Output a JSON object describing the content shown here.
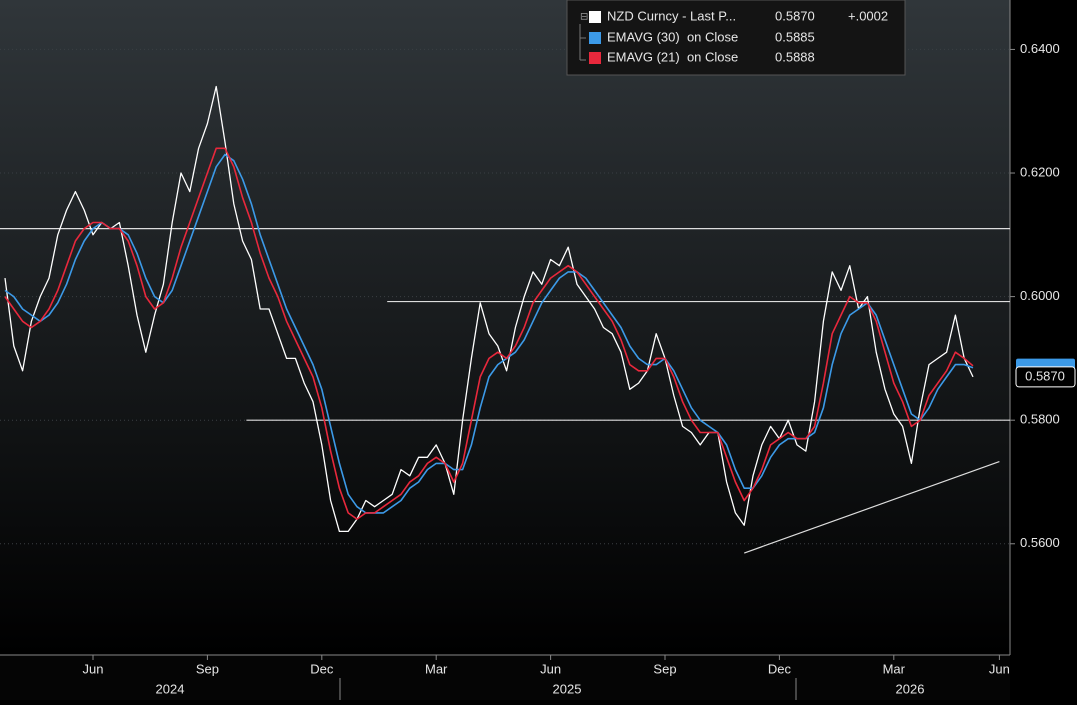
{
  "chart_data": {
    "type": "line",
    "categories": [
      null,
      null,
      null,
      null,
      null,
      null,
      null,
      null,
      null,
      null,
      "Jun",
      null,
      null,
      null,
      null,
      null,
      null,
      null,
      null,
      null,
      null,
      null,
      null,
      "Sep",
      null,
      null,
      null,
      null,
      null,
      null,
      null,
      null,
      null,
      null,
      null,
      null,
      "Dec",
      null,
      null,
      null,
      null,
      null,
      null,
      null,
      null,
      null,
      null,
      null,
      null,
      "Mar",
      null,
      null,
      null,
      null,
      null,
      null,
      null,
      null,
      null,
      null,
      null,
      null,
      "Jun",
      null,
      null,
      null,
      null,
      null,
      null,
      null,
      null,
      null,
      null,
      null,
      null,
      "Sep",
      null,
      null,
      null,
      null,
      null,
      null,
      null,
      null,
      null,
      null,
      null,
      null,
      "Dec",
      null,
      null,
      null,
      null,
      null,
      null,
      null,
      null,
      null,
      null,
      null,
      null,
      "Mar",
      null,
      null,
      null,
      null,
      null,
      null,
      null,
      null,
      null,
      null,
      null,
      "Jun"
    ],
    "x_group_labels": [
      "2024",
      "2025",
      "2026"
    ],
    "series": [
      {
        "name": "NZD Curncy - Last P...",
        "color": "#ffffff",
        "last_label": "0.5870",
        "change_label": "+.0002",
        "values": [
          0.603,
          0.592,
          0.588,
          0.596,
          0.6,
          0.603,
          0.61,
          0.614,
          0.617,
          0.614,
          0.61,
          0.612,
          0.611,
          0.612,
          0.605,
          0.597,
          0.591,
          0.597,
          0.602,
          0.612,
          0.62,
          0.617,
          0.624,
          0.628,
          0.634,
          0.625,
          0.615,
          0.609,
          0.606,
          0.598,
          0.598,
          0.594,
          0.59,
          0.59,
          0.586,
          0.583,
          0.576,
          0.567,
          0.562,
          0.562,
          0.564,
          0.567,
          0.566,
          0.567,
          0.568,
          0.572,
          0.571,
          0.574,
          0.574,
          0.576,
          0.573,
          0.568,
          0.58,
          0.59,
          0.599,
          0.594,
          0.592,
          0.588,
          0.595,
          0.6,
          0.604,
          0.602,
          0.606,
          0.605,
          0.608,
          0.602,
          0.6,
          0.598,
          0.595,
          0.594,
          0.591,
          0.585,
          0.586,
          0.588,
          0.594,
          0.59,
          0.584,
          0.579,
          0.578,
          0.576,
          0.578,
          0.578,
          0.57,
          0.565,
          0.563,
          0.571,
          0.576,
          0.579,
          0.577,
          0.58,
          0.576,
          0.575,
          0.583,
          0.596,
          0.604,
          0.601,
          0.605,
          0.598,
          0.6,
          0.591,
          0.585,
          0.581,
          0.579,
          0.573,
          0.582,
          0.589,
          0.59,
          0.591,
          0.597,
          0.59,
          0.587,
          null,
          null,
          null
        ]
      },
      {
        "name": "EMAVG (30)  on Close",
        "color": "#3c9ae8",
        "last_label": "0.5885",
        "values": [
          0.601,
          0.6,
          0.598,
          0.597,
          0.596,
          0.597,
          0.599,
          0.602,
          0.606,
          0.609,
          0.611,
          0.612,
          0.611,
          0.611,
          0.61,
          0.607,
          0.603,
          0.6,
          0.599,
          0.601,
          0.605,
          0.609,
          0.613,
          0.617,
          0.621,
          0.623,
          0.622,
          0.619,
          0.615,
          0.61,
          0.606,
          0.602,
          0.598,
          0.595,
          0.592,
          0.589,
          0.585,
          0.579,
          0.573,
          0.568,
          0.566,
          0.565,
          0.565,
          0.565,
          0.566,
          0.567,
          0.569,
          0.57,
          0.572,
          0.573,
          0.573,
          0.572,
          0.572,
          0.576,
          0.582,
          0.587,
          0.589,
          0.59,
          0.591,
          0.593,
          0.596,
          0.599,
          0.601,
          0.603,
          0.604,
          0.604,
          0.603,
          0.601,
          0.599,
          0.597,
          0.595,
          0.592,
          0.59,
          0.589,
          0.589,
          0.59,
          0.588,
          0.585,
          0.582,
          0.58,
          0.579,
          0.578,
          0.576,
          0.572,
          0.569,
          0.569,
          0.571,
          0.574,
          0.576,
          0.577,
          0.577,
          0.577,
          0.578,
          0.582,
          0.589,
          0.594,
          0.597,
          0.598,
          0.599,
          0.597,
          0.593,
          0.589,
          0.585,
          0.581,
          0.58,
          0.582,
          0.585,
          0.587,
          0.589,
          0.589,
          0.5885,
          null,
          null,
          null
        ]
      },
      {
        "name": "EMAVG (21)  on Close",
        "color": "#e8283c",
        "last_label": "0.5888",
        "values": [
          0.6,
          0.598,
          0.596,
          0.595,
          0.596,
          0.598,
          0.601,
          0.605,
          0.609,
          0.611,
          0.612,
          0.612,
          0.611,
          0.611,
          0.609,
          0.605,
          0.6,
          0.598,
          0.599,
          0.603,
          0.608,
          0.612,
          0.616,
          0.62,
          0.624,
          0.624,
          0.621,
          0.616,
          0.612,
          0.607,
          0.603,
          0.6,
          0.596,
          0.593,
          0.59,
          0.587,
          0.582,
          0.575,
          0.569,
          0.565,
          0.564,
          0.565,
          0.565,
          0.566,
          0.567,
          0.568,
          0.57,
          0.571,
          0.573,
          0.574,
          0.573,
          0.57,
          0.573,
          0.58,
          0.587,
          0.59,
          0.591,
          0.59,
          0.592,
          0.595,
          0.599,
          0.601,
          0.603,
          0.604,
          0.605,
          0.604,
          0.602,
          0.6,
          0.598,
          0.596,
          0.593,
          0.589,
          0.588,
          0.588,
          0.59,
          0.59,
          0.587,
          0.583,
          0.58,
          0.578,
          0.578,
          0.578,
          0.574,
          0.57,
          0.567,
          0.569,
          0.572,
          0.576,
          0.577,
          0.578,
          0.577,
          0.577,
          0.579,
          0.586,
          0.594,
          0.597,
          0.6,
          0.599,
          0.599,
          0.596,
          0.591,
          0.586,
          0.583,
          0.579,
          0.58,
          0.584,
          0.586,
          0.588,
          0.591,
          0.59,
          0.5888,
          null,
          null,
          null
        ]
      }
    ],
    "ylim": [
      0.542,
      0.648
    ],
    "yticks": [
      {
        "value": 0.56,
        "label": "0.5600"
      },
      {
        "value": 0.58,
        "label": "0.5800"
      },
      {
        "value": 0.6,
        "label": "0.6000"
      },
      {
        "value": 0.62,
        "label": "0.6200"
      },
      {
        "value": 0.64,
        "label": "0.6400"
      }
    ],
    "hlines": [
      {
        "value": 0.611,
        "start": 0
      },
      {
        "value": 0.5992,
        "start": 44
      },
      {
        "value": 0.58,
        "start": 28
      }
    ],
    "trendline": {
      "x": [
        84,
        113
      ],
      "values": [
        0.5585,
        0.5733
      ]
    }
  }
}
